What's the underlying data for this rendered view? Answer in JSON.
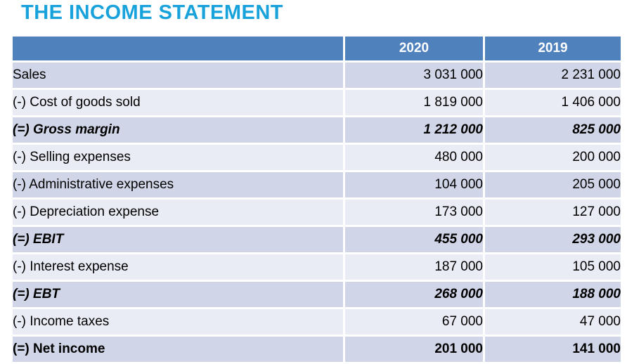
{
  "title": "THE INCOME STATEMENT",
  "colors": {
    "title_accent": "#18A2DC",
    "header_bg": "#4F81BD",
    "header_text": "#FFFFFF",
    "band_dark": "#D0D6E7",
    "band_light": "#E9ECF4",
    "body_text": "#000000"
  },
  "table": {
    "columns": [
      "",
      "2020",
      "2019"
    ],
    "rows": [
      {
        "label": "Sales",
        "v2020": "3 031 000",
        "v2019": "2 231 000",
        "emphasis": "none"
      },
      {
        "label": "(-) Cost of goods sold",
        "v2020": "1 819 000",
        "v2019": "1 406 000",
        "emphasis": "none"
      },
      {
        "label": "(=) Gross margin",
        "v2020": "1 212 000",
        "v2019": "825 000",
        "emphasis": "bold-italic"
      },
      {
        "label": "(-) Selling expenses",
        "v2020": "480 000",
        "v2019": "200 000",
        "emphasis": "none"
      },
      {
        "label": "(-) Administrative expenses",
        "v2020": "104 000",
        "v2019": "205 000",
        "emphasis": "none"
      },
      {
        "label": "(-) Depreciation expense",
        "v2020": "173 000",
        "v2019": "127 000",
        "emphasis": "none"
      },
      {
        "label": "(=) EBIT",
        "v2020": "455 000",
        "v2019": "293 000",
        "emphasis": "bold-italic"
      },
      {
        "label": "(-) Interest expense",
        "v2020": "187 000",
        "v2019": "105 000",
        "emphasis": "none"
      },
      {
        "label": "(=) EBT",
        "v2020": "268 000",
        "v2019": "188 000",
        "emphasis": "bold-italic"
      },
      {
        "label": "(-) Income taxes",
        "v2020": "67 000",
        "v2019": "47 000",
        "emphasis": "none"
      },
      {
        "label": "(=) Net income",
        "v2020": "201 000",
        "v2019": "141 000",
        "emphasis": "bold"
      }
    ]
  }
}
